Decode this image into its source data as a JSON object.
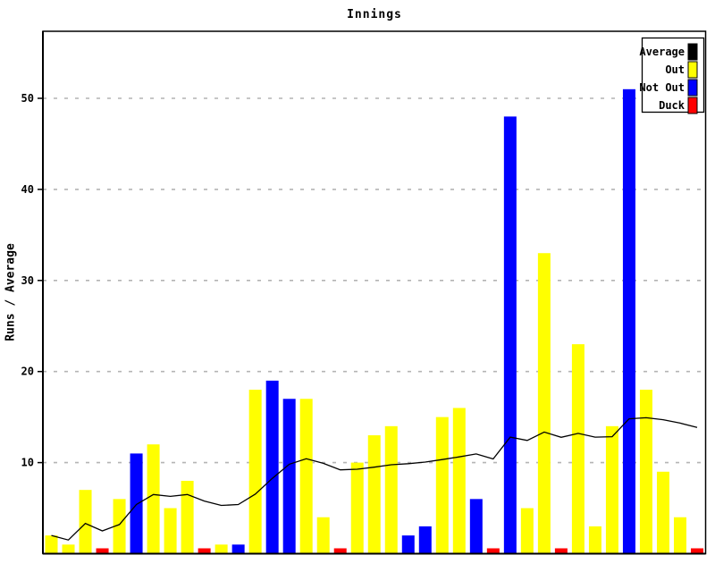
{
  "chart_data": {
    "type": "bar",
    "title": "Innings",
    "xlabel": "",
    "ylabel": "Runs / Average",
    "ylim": [
      0,
      57
    ],
    "yticks": [
      10,
      20,
      30,
      40,
      50
    ],
    "grid": "horizontal dashed",
    "grid_color": "#b4b4b4",
    "legend_position": "top-right",
    "legend": [
      {
        "label": "Average",
        "color": "#000000"
      },
      {
        "label": "Out",
        "color": "#ffff00"
      },
      {
        "label": "Not Out",
        "color": "#0000ff"
      },
      {
        "label": "Duck",
        "color": "#ff0000"
      }
    ],
    "status_colors": {
      "out": "#ffff00",
      "not_out": "#0000ff",
      "duck": "#ff0000"
    },
    "innings": [
      {
        "runs": 2,
        "status": "out"
      },
      {
        "runs": 1,
        "status": "out"
      },
      {
        "runs": 7,
        "status": "out"
      },
      {
        "runs": 0,
        "status": "duck"
      },
      {
        "runs": 6,
        "status": "out"
      },
      {
        "runs": 11,
        "status": "not_out"
      },
      {
        "runs": 12,
        "status": "out"
      },
      {
        "runs": 5,
        "status": "out"
      },
      {
        "runs": 8,
        "status": "out"
      },
      {
        "runs": 0,
        "status": "duck"
      },
      {
        "runs": 1,
        "status": "out"
      },
      {
        "runs": 1,
        "status": "not_out"
      },
      {
        "runs": 18,
        "status": "out"
      },
      {
        "runs": 19,
        "status": "not_out"
      },
      {
        "runs": 17,
        "status": "not_out"
      },
      {
        "runs": 17,
        "status": "out"
      },
      {
        "runs": 4,
        "status": "out"
      },
      {
        "runs": 0,
        "status": "duck"
      },
      {
        "runs": 10,
        "status": "out"
      },
      {
        "runs": 13,
        "status": "out"
      },
      {
        "runs": 14,
        "status": "out"
      },
      {
        "runs": 2,
        "status": "not_out"
      },
      {
        "runs": 3,
        "status": "not_out"
      },
      {
        "runs": 15,
        "status": "out"
      },
      {
        "runs": 16,
        "status": "out"
      },
      {
        "runs": 6,
        "status": "not_out"
      },
      {
        "runs": 0,
        "status": "duck"
      },
      {
        "runs": 48,
        "status": "not_out"
      },
      {
        "runs": 5,
        "status": "out"
      },
      {
        "runs": 33,
        "status": "out"
      },
      {
        "runs": 0,
        "status": "duck"
      },
      {
        "runs": 23,
        "status": "out"
      },
      {
        "runs": 3,
        "status": "out"
      },
      {
        "runs": 14,
        "status": "out"
      },
      {
        "runs": 51,
        "status": "not_out"
      },
      {
        "runs": 18,
        "status": "out"
      },
      {
        "runs": 9,
        "status": "out"
      },
      {
        "runs": 4,
        "status": "out"
      },
      {
        "runs": 0,
        "status": "duck"
      }
    ],
    "average_series": [
      2.0,
      1.5,
      3.33,
      2.5,
      3.2,
      5.4,
      6.5,
      6.29,
      6.5,
      5.78,
      5.3,
      5.4,
      6.55,
      8.27,
      9.82,
      10.42,
      9.92,
      9.21,
      9.27,
      9.5,
      9.76,
      9.88,
      10.06,
      10.33,
      10.63,
      10.95,
      10.4,
      12.8,
      12.43,
      13.36,
      12.78,
      13.21,
      12.8,
      12.85,
      14.81,
      14.93,
      14.71,
      14.34,
      13.87
    ]
  }
}
